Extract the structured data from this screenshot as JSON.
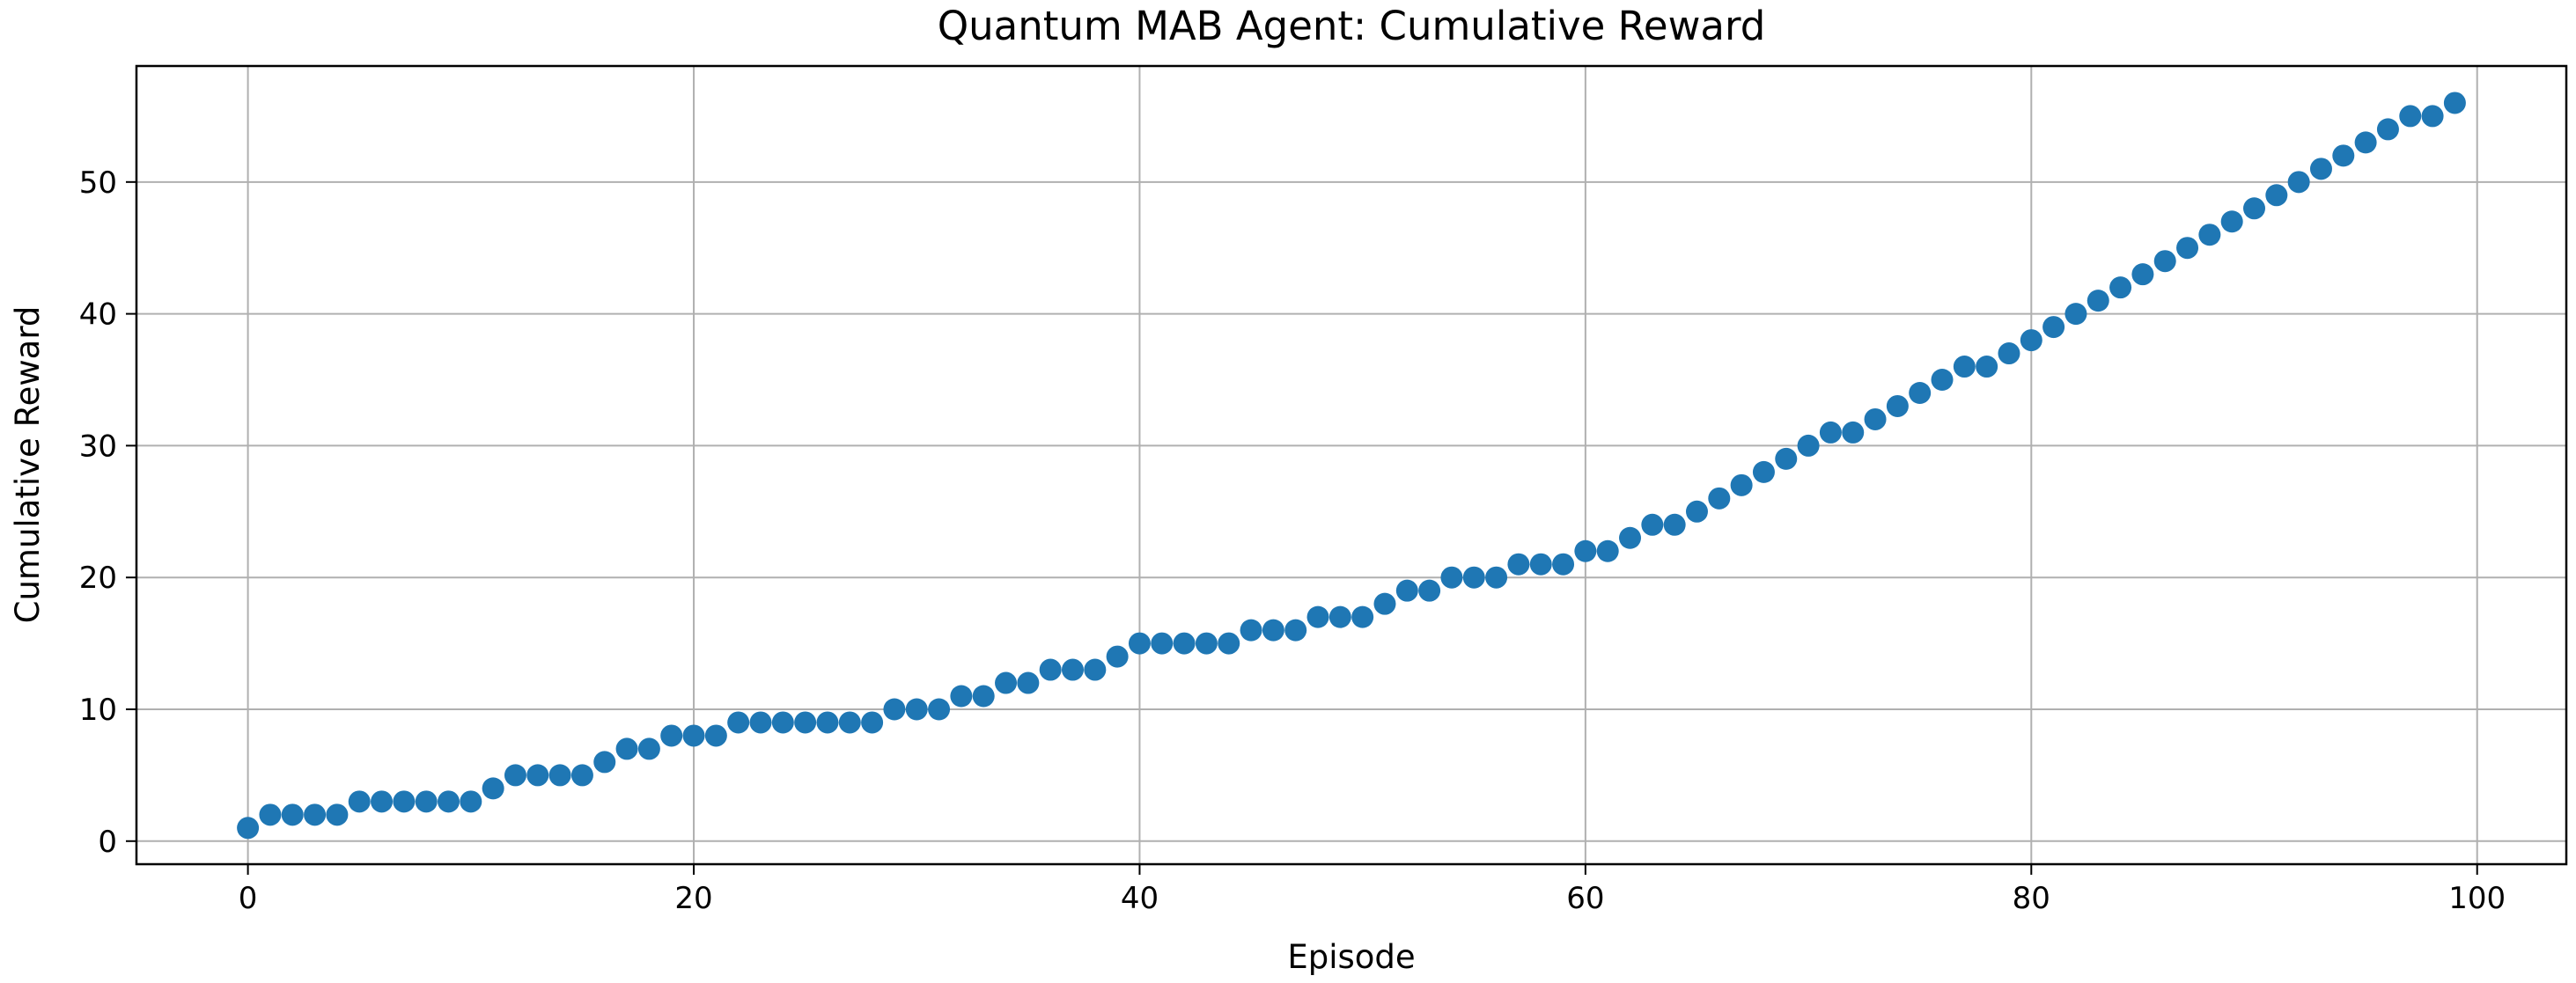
{
  "chart_data": {
    "type": "scatter",
    "title": "Quantum MAB Agent: Cumulative Reward",
    "xlabel": "Episode",
    "ylabel": "Cumulative Reward",
    "xlim": [
      -5,
      104
    ],
    "ylim": [
      -1.75,
      58.8
    ],
    "xticks": [
      0,
      20,
      40,
      60,
      80,
      100
    ],
    "yticks": [
      0,
      10,
      20,
      30,
      40,
      50
    ],
    "grid": true,
    "marker_color": "#1f77b4",
    "x": [
      0,
      1,
      2,
      3,
      4,
      5,
      6,
      7,
      8,
      9,
      10,
      11,
      12,
      13,
      14,
      15,
      16,
      17,
      18,
      19,
      20,
      21,
      22,
      23,
      24,
      25,
      26,
      27,
      28,
      29,
      30,
      31,
      32,
      33,
      34,
      35,
      36,
      37,
      38,
      39,
      40,
      41,
      42,
      43,
      44,
      45,
      46,
      47,
      48,
      49,
      50,
      51,
      52,
      53,
      54,
      55,
      56,
      57,
      58,
      59,
      60,
      61,
      62,
      63,
      64,
      65,
      66,
      67,
      68,
      69,
      70,
      71,
      72,
      73,
      74,
      75,
      76,
      77,
      78,
      79,
      80,
      81,
      82,
      83,
      84,
      85,
      86,
      87,
      88,
      89,
      90,
      91,
      92,
      93,
      94,
      95,
      96,
      97,
      98,
      99
    ],
    "y": [
      1,
      2,
      2,
      2,
      2,
      3,
      3,
      3,
      3,
      3,
      3,
      4,
      5,
      5,
      5,
      5,
      6,
      7,
      7,
      8,
      8,
      8,
      9,
      9,
      9,
      9,
      9,
      9,
      9,
      10,
      10,
      10,
      11,
      11,
      12,
      12,
      13,
      13,
      13,
      14,
      15,
      15,
      15,
      15,
      15,
      16,
      16,
      16,
      17,
      17,
      17,
      18,
      19,
      19,
      20,
      20,
      20,
      21,
      21,
      21,
      22,
      22,
      23,
      24,
      24,
      25,
      26,
      27,
      28,
      29,
      30,
      31,
      31,
      32,
      33,
      34,
      35,
      36,
      36,
      37,
      38,
      39,
      40,
      41,
      42,
      43,
      44,
      45,
      46,
      47,
      48,
      49,
      50,
      51,
      52,
      53,
      54,
      55,
      55,
      56
    ]
  }
}
